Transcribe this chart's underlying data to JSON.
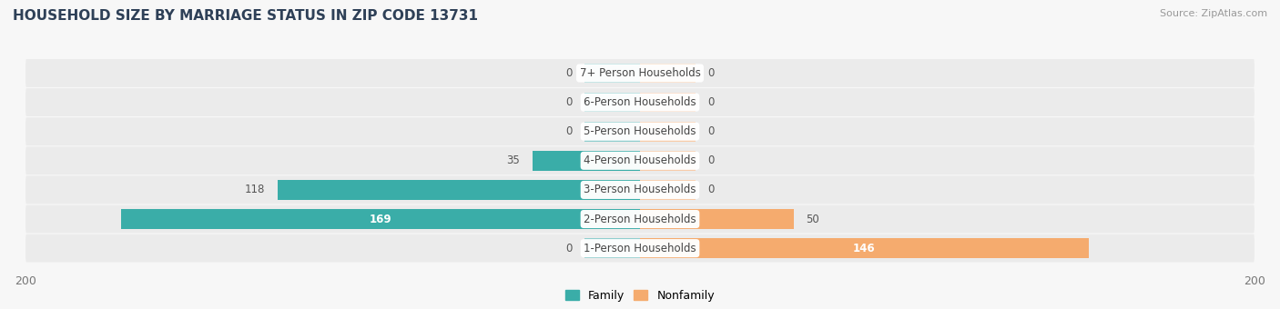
{
  "title": "HOUSEHOLD SIZE BY MARRIAGE STATUS IN ZIP CODE 13731",
  "source": "Source: ZipAtlas.com",
  "categories": [
    "1-Person Households",
    "2-Person Households",
    "3-Person Households",
    "4-Person Households",
    "5-Person Households",
    "6-Person Households",
    "7+ Person Households"
  ],
  "family_values": [
    0,
    169,
    118,
    35,
    0,
    0,
    0
  ],
  "nonfamily_values": [
    146,
    50,
    0,
    0,
    0,
    0,
    0
  ],
  "family_color": "#3aada8",
  "nonfamily_color": "#f5ab6e",
  "family_color_stub": "#90cece",
  "nonfamily_color_stub": "#f8ccaa",
  "xlim_left": -200,
  "xlim_right": 200,
  "stub_size": 18,
  "bg_color": "#f7f7f7",
  "row_bg_color": "#ebebeb",
  "legend_family": "Family",
  "legend_nonfamily": "Nonfamily",
  "title_color": "#2e4057",
  "source_color": "#999999",
  "label_fontsize": 8.5,
  "value_fontsize": 8.5,
  "title_fontsize": 11
}
